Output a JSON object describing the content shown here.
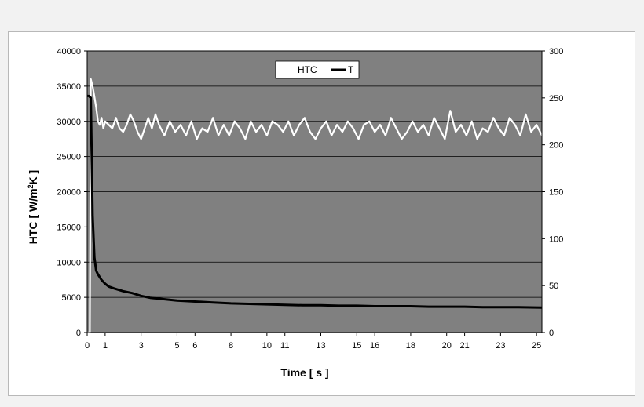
{
  "chart_data": {
    "type": "line",
    "xlabel": "Time [ s ]",
    "ylabel": "HTC [ W/m2K ]",
    "ylabel_parts": {
      "pre": "HTC [ W/m",
      "sup": "2",
      "post": "K ]"
    },
    "xlim": [
      0,
      25.3
    ],
    "ylim": [
      0,
      40000
    ],
    "y2lim": [
      0,
      300
    ],
    "x_ticks": [
      "0",
      "1",
      "3",
      "5",
      "6",
      "8",
      "10",
      "11",
      "13",
      "15",
      "16",
      "18",
      "20",
      "21",
      "23",
      "25"
    ],
    "x_tick_values": [
      0,
      1,
      3,
      5,
      6,
      8,
      10,
      11,
      13,
      15,
      16,
      18,
      20,
      21,
      23,
      25
    ],
    "y_ticks": [
      "0",
      "5000",
      "10000",
      "15000",
      "20000",
      "25000",
      "30000",
      "35000",
      "40000"
    ],
    "y_tick_values": [
      0,
      5000,
      10000,
      15000,
      20000,
      25000,
      30000,
      35000,
      40000
    ],
    "y2_ticks": [
      "0",
      "50",
      "100",
      "150",
      "200",
      "250",
      "300"
    ],
    "y2_tick_values": [
      0,
      50,
      100,
      150,
      200,
      250,
      300
    ],
    "grid": "horizontal",
    "legend_position": "top-center",
    "plot_background": "#808080",
    "series": [
      {
        "name": "HTC",
        "axis": "left",
        "color": "#ffffff",
        "x": [
          0.0,
          0.15,
          0.2,
          0.3,
          0.4,
          0.5,
          0.6,
          0.7,
          0.8,
          0.9,
          1.0,
          1.2,
          1.4,
          1.6,
          1.8,
          2.0,
          2.2,
          2.4,
          2.6,
          2.8,
          3.0,
          3.2,
          3.4,
          3.6,
          3.8,
          4.0,
          4.3,
          4.6,
          4.9,
          5.2,
          5.5,
          5.8,
          6.1,
          6.4,
          6.7,
          7.0,
          7.3,
          7.6,
          7.9,
          8.2,
          8.5,
          8.8,
          9.1,
          9.4,
          9.7,
          10.0,
          10.3,
          10.6,
          10.9,
          11.2,
          11.5,
          11.8,
          12.1,
          12.4,
          12.7,
          13.0,
          13.3,
          13.6,
          13.9,
          14.2,
          14.5,
          14.8,
          15.1,
          15.4,
          15.7,
          16.0,
          16.3,
          16.6,
          16.9,
          17.2,
          17.5,
          17.8,
          18.1,
          18.4,
          18.7,
          19.0,
          19.3,
          19.6,
          19.9,
          20.2,
          20.5,
          20.8,
          21.1,
          21.4,
          21.7,
          22.0,
          22.3,
          22.6,
          22.9,
          23.2,
          23.5,
          23.8,
          24.1,
          24.4,
          24.7,
          25.0,
          25.3
        ],
        "values": [
          0,
          0,
          36000,
          35000,
          33500,
          32000,
          30000,
          29500,
          30500,
          29000,
          30000,
          29500,
          29000,
          30500,
          29000,
          28500,
          29500,
          31000,
          30000,
          28500,
          27500,
          29000,
          30500,
          29000,
          31000,
          29500,
          28000,
          30000,
          28500,
          29500,
          28000,
          30000,
          27500,
          29000,
          28500,
          30500,
          28000,
          29500,
          28000,
          30000,
          29000,
          27500,
          30000,
          28500,
          29500,
          28000,
          30000,
          29500,
          28500,
          30000,
          28000,
          29500,
          30500,
          28500,
          27500,
          29000,
          30000,
          28000,
          29500,
          28500,
          30000,
          29000,
          27500,
          29500,
          30000,
          28500,
          29500,
          28000,
          30500,
          29000,
          27500,
          28500,
          30000,
          28500,
          29500,
          28000,
          30500,
          29000,
          27500,
          31500,
          28500,
          29500,
          28000,
          30000,
          27500,
          29000,
          28500,
          30500,
          29000,
          28000,
          30500,
          29500,
          28000,
          31000,
          28500,
          29500,
          28000
        ]
      },
      {
        "name": "T",
        "axis": "right",
        "color": "#000000",
        "x": [
          0.0,
          0.1,
          0.2,
          0.3,
          0.4,
          0.5,
          0.6,
          0.8,
          1.0,
          1.2,
          1.5,
          2.0,
          2.5,
          3.0,
          3.5,
          4.0,
          5.0,
          6.0,
          7.0,
          8.0,
          9.0,
          10.0,
          11.0,
          12.0,
          13.0,
          14.0,
          15.0,
          16.0,
          17.0,
          18.0,
          19.0,
          20.0,
          21.0,
          22.0,
          23.0,
          24.0,
          25.3
        ],
        "values": [
          252,
          252,
          250,
          125,
          80,
          66,
          62,
          56,
          52,
          49,
          47,
          44,
          42,
          39,
          37,
          36,
          34,
          33,
          32,
          31,
          30.5,
          30,
          29.5,
          29,
          29,
          28.5,
          28.5,
          28,
          28,
          28,
          27.5,
          27.5,
          27.5,
          27,
          27,
          27,
          26.5
        ]
      }
    ]
  }
}
